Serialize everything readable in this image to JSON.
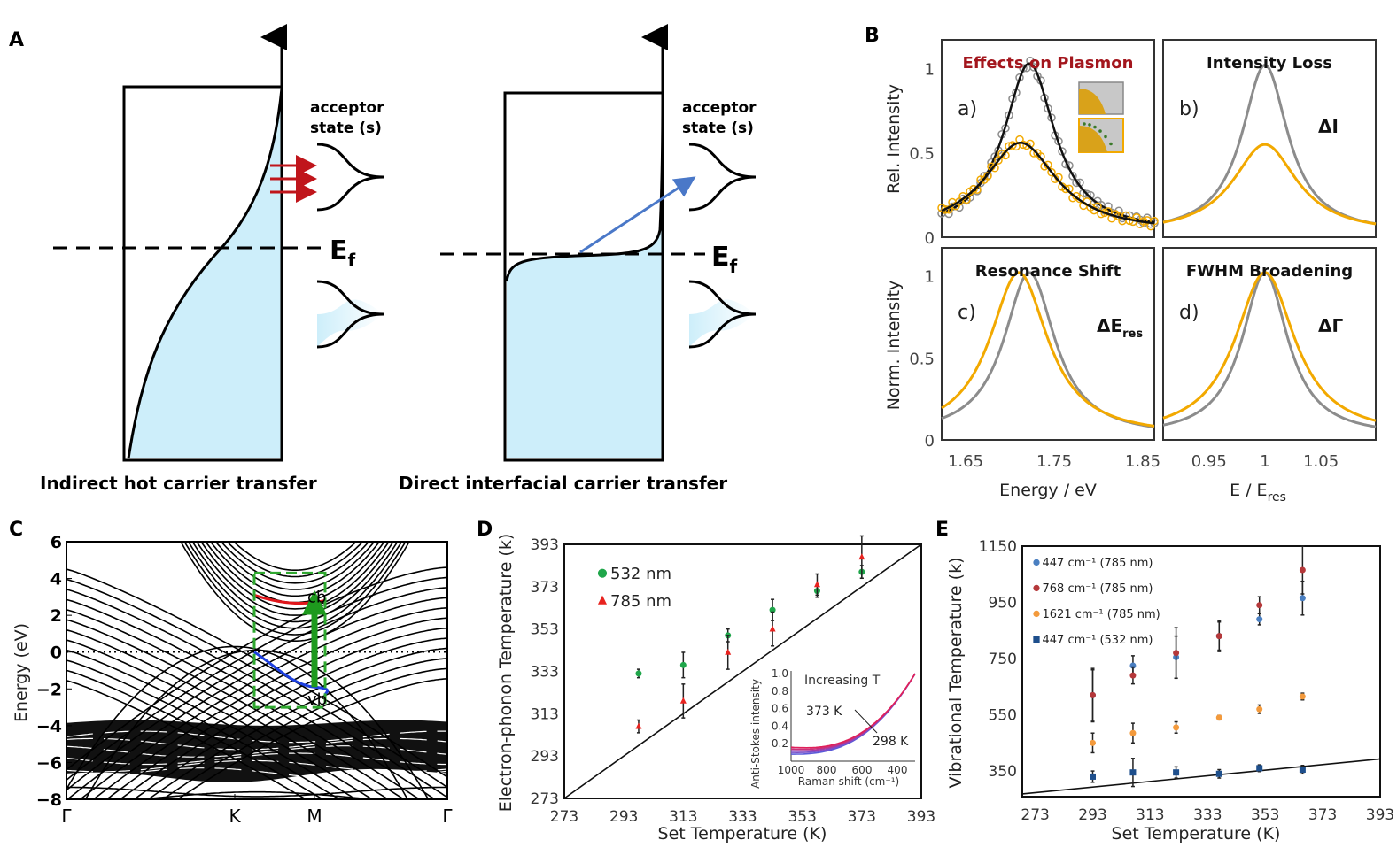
{
  "panel_labels": {
    "a": "A",
    "b": "B",
    "c": "C",
    "d": "D",
    "e": "E"
  },
  "panel_A": {
    "left": {
      "acceptor_label_1": "acceptor",
      "acceptor_label_2": "state (s)",
      "fermi_label": "E",
      "fermi_sub": "f",
      "caption": "Indirect hot carrier transfer"
    },
    "right": {
      "acceptor_label_1": "acceptor",
      "acceptor_label_2": "state (s)",
      "fermi_label": "E",
      "fermi_sub": "f",
      "caption": "Direct interfacial carrier transfer"
    },
    "colors": {
      "fill": "#cdeefa",
      "transfer_arrows": "#c0151b",
      "direct_arrow": "#4a78c8"
    }
  },
  "chart_data": [
    {
      "panel": "B",
      "type": "line",
      "colors": {
        "reference": "#8c8c8c",
        "modified": "#f2a900",
        "fit": "#111111"
      },
      "subplots": [
        {
          "id": "a",
          "title": "Effects on Plasmon",
          "title_color": "#a3161d",
          "tag": "a)",
          "ylabel": "Rel. Intensity",
          "yticks": [
            "0",
            "0.5",
            "1"
          ],
          "ylim": [
            0,
            1.17
          ],
          "xlim": [
            1.623,
            1.863
          ],
          "series": [
            {
              "color": "gray",
              "peak": 1.722,
              "amplitude": 1.0,
              "fwhm": 0.07,
              "markers": "open-circles"
            },
            {
              "color": "orange",
              "peak": 1.712,
              "amplitude": 0.53,
              "fwhm": 0.1,
              "markers": "open-circles"
            }
          ]
        },
        {
          "id": "b",
          "title": "Intensity Loss",
          "tag": "b)",
          "annotation": "ΔI",
          "ylim": [
            0,
            1.17
          ],
          "xlim": [
            0.909,
            1.099
          ],
          "series": [
            {
              "color": "gray",
              "peak": 1.0,
              "amplitude": 1.0,
              "fwhm": 0.05
            },
            {
              "color": "orange",
              "peak": 1.0,
              "amplitude": 0.53,
              "fwhm": 0.07
            }
          ]
        },
        {
          "id": "c",
          "title": "Resonance Shift",
          "tag": "c)",
          "annotation": "ΔE",
          "annotation_sub": "res",
          "ylabel": "Norm. Intensity",
          "yticks": [
            "0",
            "0.5",
            "1"
          ],
          "xticks": [
            "1.65",
            "1.75",
            "1.85"
          ],
          "xlabel": "Energy / eV",
          "ylim": [
            0,
            1.17
          ],
          "xlim": [
            1.623,
            1.863
          ],
          "series": [
            {
              "color": "gray",
              "peak": 1.722,
              "amplitude": 1.0,
              "fwhm": 0.07
            },
            {
              "color": "orange",
              "peak": 1.71,
              "amplitude": 1.0,
              "fwhm": 0.08
            }
          ]
        },
        {
          "id": "d",
          "title": "FWHM Broadening",
          "tag": "d)",
          "annotation": "ΔΓ",
          "xticks": [
            "0.95",
            "1",
            "1.05"
          ],
          "xlabel": "E / E",
          "xlabel_sub": "res",
          "ylim": [
            0,
            1.17
          ],
          "xlim": [
            0.909,
            1.099
          ],
          "series": [
            {
              "color": "gray",
              "peak": 1.0,
              "amplitude": 1.0,
              "fwhm": 0.05
            },
            {
              "color": "orange",
              "peak": 1.0,
              "amplitude": 1.0,
              "fwhm": 0.065
            }
          ]
        }
      ]
    },
    {
      "panel": "C",
      "type": "line",
      "ylabel": "Energy (eV)",
      "ylim": [
        -8,
        6
      ],
      "yticks": [
        "6",
        "4",
        "2",
        "0",
        "−2",
        "−4",
        "−6",
        "−8"
      ],
      "xticks": [
        "Γ",
        "K",
        "M",
        "Γ"
      ],
      "annotations": {
        "conduction": "cb",
        "valence": "vb"
      },
      "colors": {
        "cb": "#e0161b",
        "vb": "#1c3fe0",
        "transition": "#1e9a1e",
        "box": "#2fa82f"
      }
    },
    {
      "panel": "D",
      "type": "scatter",
      "xlabel": "Set Temperature (K)",
      "ylabel": "Electron-phonon Temperature (k)",
      "xlim": [
        273,
        393
      ],
      "ylim": [
        273,
        393
      ],
      "xticks": [
        "273",
        "293",
        "313",
        "333",
        "353",
        "373",
        "393"
      ],
      "yticks": [
        "273",
        "293",
        "313",
        "333",
        "353",
        "373",
        "393"
      ],
      "legend": "top-left",
      "reference_line": "y = x",
      "series": [
        {
          "name": "532 nm",
          "marker": "circle",
          "color": "#1fa64a",
          "x": [
            298,
            313,
            328,
            343,
            358,
            373
          ],
          "y": [
            332,
            336,
            350,
            362,
            371,
            380
          ],
          "err": [
            2,
            6,
            3,
            5,
            3,
            3
          ]
        },
        {
          "name": "785 nm",
          "marker": "triangle",
          "color": "#e8231f",
          "x": [
            298,
            313,
            328,
            343,
            358,
            373
          ],
          "y": [
            307,
            319,
            342,
            353,
            374,
            387
          ],
          "err": [
            3,
            8,
            8,
            8,
            5,
            10
          ]
        }
      ],
      "inset": {
        "title": "Increasing T",
        "xlabel": "Raman shift (cm⁻¹)",
        "ylabel": "Anti-Stokes intensity",
        "xticks": [
          "1000",
          "800",
          "600",
          "400"
        ],
        "yticks": [
          "0.2",
          "0.4",
          "0.6",
          "0.8",
          "1.0"
        ],
        "annotations": [
          "373 K",
          "298 K"
        ]
      }
    },
    {
      "panel": "E",
      "type": "scatter",
      "xlabel": "Set Temperature (K)",
      "ylabel": "Vibrational Temperature (k)",
      "xlim": [
        268.5,
        393
      ],
      "ylim": [
        259,
        1150
      ],
      "xticks": [
        "273",
        "293",
        "313",
        "333",
        "353",
        "373",
        "393"
      ],
      "yticks": [
        "350",
        "550",
        "750",
        "950",
        "1150"
      ],
      "legend": "top-left",
      "reference_line": "y = x",
      "series": [
        {
          "name": "447 cm⁻¹ (785 nm)",
          "marker": "circle",
          "color": "#4a7fc1",
          "x": [
            293,
            307,
            322,
            337,
            351,
            366
          ],
          "y": [
            620,
            725,
            755,
            830,
            890,
            965
          ],
          "err": [
            90,
            35,
            75,
            50,
            20,
            60
          ]
        },
        {
          "name": "768 cm⁻¹  (785 nm)",
          "marker": "circle",
          "color": "#b5383a",
          "x": [
            293,
            307,
            322,
            337,
            351,
            366
          ],
          "y": [
            620,
            690,
            770,
            830,
            940,
            1065
          ],
          "err": [
            95,
            30,
            90,
            55,
            30,
            85
          ]
        },
        {
          "name": "1621 cm⁻¹  (785 nm)",
          "marker": "circle",
          "color": "#f39a3c",
          "x": [
            293,
            307,
            322,
            337,
            351,
            366
          ],
          "y": [
            450,
            485,
            505,
            540,
            570,
            615
          ],
          "err": [
            35,
            35,
            20,
            8,
            15,
            12
          ]
        },
        {
          "name": "447 cm⁻¹  (532 nm)",
          "marker": "square",
          "color": "#1e4f8c",
          "x": [
            293,
            307,
            322,
            337,
            351,
            366
          ],
          "y": [
            330,
            345,
            345,
            340,
            360,
            355
          ],
          "err": [
            20,
            50,
            20,
            15,
            12,
            15
          ]
        }
      ]
    }
  ]
}
